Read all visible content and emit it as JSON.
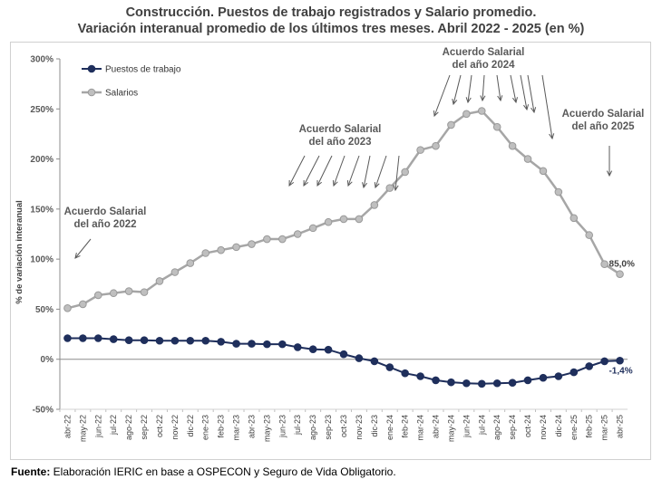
{
  "title_line1": "Construcción. Puestos de trabajo registrados y Salario promedio.",
  "title_line2": "Variación interanual promedio de los últimos tres meses. Abril 2022 - 2025 (en %)",
  "source_label": "Fuente:",
  "source_text": " Elaboración IERIC en base a OSPECON y Seguro de Vida Obligatorio.",
  "colors": {
    "puestos_line": "#1f2f5c",
    "puestos_marker": "#1f2f5c",
    "salarios_line": "#a6a6a6",
    "salarios_marker": "#bfbfbf",
    "annotation": "#595959",
    "gridline": "#d9d9d9"
  },
  "chart_data": {
    "type": "line",
    "ylabel": "% de variación interanual",
    "xlabel": "",
    "ylim": [
      -50,
      300
    ],
    "yticks": [
      -50,
      0,
      50,
      100,
      150,
      200,
      250,
      300
    ],
    "ytick_labels": [
      "-50%",
      "0%",
      "50%",
      "100%",
      "150%",
      "200%",
      "250%",
      "300%"
    ],
    "legend_position": "top-left",
    "grid": false,
    "categories": [
      "abr-22",
      "may-22",
      "jun-22",
      "jul-22",
      "ago-22",
      "sep-22",
      "oct-22",
      "nov-22",
      "dic-22",
      "ene-23",
      "feb-23",
      "mar-23",
      "abr-23",
      "may-23",
      "jun-23",
      "jul-23",
      "ago-23",
      "sep-23",
      "oct-23",
      "nov-23",
      "dic-23",
      "ene-24",
      "feb-24",
      "mar-24",
      "abr-24",
      "may-24",
      "jun-24",
      "jul-24",
      "ago-24",
      "sep-24",
      "oct-24",
      "nov-24",
      "dic-24",
      "ene-25",
      "feb-25",
      "mar-25",
      "abr-25"
    ],
    "series": [
      {
        "name": "Puestos de trabajo",
        "values": [
          21,
          21,
          21,
          20,
          19,
          19,
          18.5,
          18.5,
          18.5,
          18.5,
          17.5,
          15.5,
          15.5,
          15,
          15,
          12,
          10,
          9.5,
          5,
          1,
          -2,
          -8,
          -14,
          -17,
          -21,
          -23,
          -24,
          -24.5,
          -24,
          -23.5,
          -21,
          -18.5,
          -17,
          -13,
          -7,
          -2,
          -1.4
        ],
        "end_label": "-1,4%"
      },
      {
        "name": "Salarios",
        "values": [
          51,
          55,
          64,
          66,
          68,
          67,
          78,
          87,
          96,
          106,
          109,
          112,
          115,
          120,
          120,
          125,
          131,
          137,
          140,
          140,
          154,
          171,
          187,
          209,
          213,
          234,
          245,
          248,
          232,
          213,
          200,
          188,
          167,
          141,
          124,
          95,
          85
        ],
        "end_label": "85,0%"
      }
    ],
    "annotations": [
      {
        "text_line1": "Acuerdo Salarial",
        "text_line2": "del año 2022"
      },
      {
        "text_line1": "Acuerdo Salarial",
        "text_line2": "del año 2023"
      },
      {
        "text_line1": "Acuerdo Salarial",
        "text_line2": "del año 2024"
      },
      {
        "text_line1": "Acuerdo Salarial",
        "text_line2": "del año 2025"
      }
    ]
  }
}
